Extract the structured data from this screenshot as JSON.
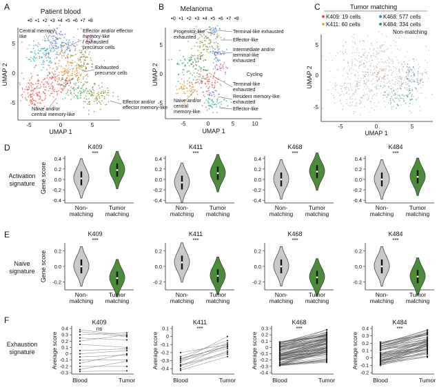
{
  "colors": {
    "violin_gray": "#c9c9cb",
    "violin_green": "#4a8c3a",
    "cluster": [
      "#e8524f",
      "#f28e2b",
      "#7f8c1f",
      "#2ca25f",
      "#26a6a6",
      "#4f7fc2",
      "#8a6bc0",
      "#d65fb0",
      "#8c5a3c"
    ],
    "umap_c_nonmatch": "#b5b5b5",
    "umap_c_match": [
      "#e8524f",
      "#f2a33a",
      "#4f7fc2",
      "#2ca25f"
    ]
  },
  "panelA": {
    "letter": "A",
    "title": "Patient blood",
    "cluster_labels": [
      "0",
      "1",
      "2",
      "3",
      "4",
      "5",
      "6",
      "7",
      "8"
    ],
    "xlabel": "UMAP 1",
    "ylabel": "UMAP 2",
    "xticks": [
      "-5",
      "0",
      "5"
    ],
    "yticks": [
      "5",
      "0",
      "-5"
    ],
    "annotations": [
      {
        "line1": "Central memory-",
        "line2": "like",
        "line3": ""
      },
      {
        "line1": "Effector and/or effector",
        "line2": "memory-like",
        "line3": "/ exhausted"
      },
      {
        "line1": "precursor cells",
        "line2": "",
        "line3": ""
      },
      {
        "line1": "Exhausted",
        "line2": "precursor cells",
        "line3": ""
      },
      {
        "line1": "Effector and/or",
        "line2": "effector memory-like",
        "line3": ""
      },
      {
        "line1": "Naive and/or",
        "line2": "central memory-like",
        "line3": ""
      }
    ]
  },
  "panelB": {
    "letter": "B",
    "title": "Melanoma",
    "cluster_labels": [
      "0",
      "1",
      "2",
      "3",
      "4",
      "5",
      "6",
      "7",
      "8"
    ],
    "xlabel": "UMAP 1",
    "ylabel": "UMAP 2",
    "xticks": [
      "-5",
      "0",
      "5",
      "10"
    ],
    "yticks": [
      "5",
      "0",
      "-5"
    ],
    "annotations": [
      {
        "line1": "Progenitor-like",
        "line2": "exhausted"
      },
      {
        "line1": "Terminal-like exhausted",
        "line2": ""
      },
      {
        "line1": "Effector-like",
        "line2": ""
      },
      {
        "line1": "Intermediate and/or",
        "line2": "terminal-like"
      },
      {
        "line1": "exhausted",
        "line2": ""
      },
      {
        "line1": "Cycling",
        "line2": ""
      },
      {
        "line1": "Terminal-like",
        "line2": "exhausted"
      },
      {
        "line1": "Resident memory-like",
        "line2": "exhausted"
      },
      {
        "line1": "Effector-like",
        "line2": ""
      },
      {
        "line1": "Naive and/or",
        "line2": "central"
      },
      {
        "line1": "memory-like",
        "line2": ""
      }
    ]
  },
  "panelC": {
    "letter": "C",
    "title": "Tumor matching",
    "legend": [
      "K409: 19 cells",
      "K468: 577 cells",
      "K411: 60 cells",
      "K484: 334 cells",
      "Non-matching"
    ],
    "xlabel": "UMAP 1",
    "ylabel": "UMAP 2",
    "xticks": [
      "-5",
      "0",
      "5"
    ],
    "yticks": [
      "5",
      "0",
      "-5"
    ]
  },
  "panelD": {
    "letter": "D",
    "row_label_1": "Activation",
    "row_label_2": "signature",
    "ylabel": "Gene score",
    "yticks": [
      "0.4",
      "0.2",
      "0.0",
      "-0.2",
      "-0.4"
    ],
    "cat1_line1": "Non-",
    "cat1_line2": "matching",
    "cat2_line1": "Tumor",
    "cat2_line2": "matching",
    "plots": [
      {
        "title": "K409",
        "sig": "***"
      },
      {
        "title": "K411",
        "sig": "***"
      },
      {
        "title": "K468",
        "sig": "***"
      },
      {
        "title": "K484",
        "sig": "***"
      }
    ]
  },
  "panelE": {
    "letter": "E",
    "row_label_1": "Naive",
    "row_label_2": "signature",
    "ylabel": "Gene score",
    "yticks": [
      "0.2",
      "0.0",
      "-0.2"
    ],
    "plots": [
      {
        "title": "K409",
        "sig": "***"
      },
      {
        "title": "K411",
        "sig": "***"
      },
      {
        "title": "K468",
        "sig": "***"
      },
      {
        "title": "K484",
        "sig": "***"
      }
    ]
  },
  "panelF": {
    "letter": "F",
    "row_label_1": "Exhaustion",
    "row_label_2": "signature",
    "ylabel": "Average score",
    "xcat1": "Blood",
    "xcat2": "Tumor",
    "plots": [
      {
        "title": "K409",
        "sig": "ns",
        "yticks": [
          "0.4",
          "0.3",
          "0.2",
          "0.1",
          "0",
          "-0.1",
          "-0.2",
          "-0.3"
        ]
      },
      {
        "title": "K411",
        "sig": "***",
        "yticks": [
          "0.1",
          "0",
          "-0.1",
          "-0.2",
          "-0.3",
          "-0.4"
        ]
      },
      {
        "title": "K468",
        "sig": "***",
        "yticks": [
          "0.3",
          "0.2",
          "0.1",
          "0",
          "-0.1",
          "-0.2",
          "-0.3",
          "-0.4"
        ]
      },
      {
        "title": "K484",
        "sig": "***",
        "yticks": [
          "0.4",
          "0.3",
          "0.2",
          "0.1",
          "0",
          "-0.1",
          "-0.2"
        ]
      }
    ]
  },
  "chart_data": [
    {
      "type": "violin",
      "panel": "D",
      "title": "Activation signature",
      "ylabel": "Gene score",
      "ylim": [
        -0.4,
        0.4
      ],
      "categories": [
        "Non-matching",
        "Tumor matching"
      ],
      "series": [
        {
          "name": "K409",
          "medians": [
            0.02,
            0.18
          ],
          "significance": "***"
        },
        {
          "name": "K411",
          "medians": [
            -0.06,
            0.12
          ],
          "significance": "***"
        },
        {
          "name": "K468",
          "medians": [
            0.0,
            0.15
          ],
          "significance": "***"
        },
        {
          "name": "K484",
          "medians": [
            0.0,
            0.05
          ],
          "significance": "***"
        }
      ]
    },
    {
      "type": "violin",
      "panel": "E",
      "title": "Naive signature",
      "ylabel": "Gene score",
      "categories": [
        "Non-matching",
        "Tumor matching"
      ],
      "series": [
        {
          "name": "K409",
          "medians": [
            0.0,
            -0.15
          ],
          "significance": "***"
        },
        {
          "name": "K411",
          "medians": [
            0.05,
            -0.12
          ],
          "significance": "***"
        },
        {
          "name": "K468",
          "medians": [
            0.0,
            -0.14
          ],
          "significance": "***"
        },
        {
          "name": "K484",
          "medians": [
            0.0,
            -0.13
          ],
          "significance": "***"
        }
      ]
    },
    {
      "type": "line",
      "panel": "F",
      "title": "Exhaustion signature",
      "ylabel": "Average score",
      "x": [
        "Blood",
        "Tumor"
      ],
      "series": [
        {
          "name": "K409",
          "ylim": [
            -0.3,
            0.4
          ],
          "significance": "ns",
          "pairs": [
            [
              0.38,
              0.29
            ],
            [
              0.35,
              0.27
            ],
            [
              0.3,
              0.33
            ],
            [
              0.25,
              0.22
            ],
            [
              0.2,
              0.3
            ],
            [
              0.15,
              0.1
            ],
            [
              0.05,
              0.08
            ],
            [
              0.0,
              0.05
            ],
            [
              -0.05,
              -0.02
            ],
            [
              -0.1,
              -0.1
            ],
            [
              -0.15,
              0.0
            ],
            [
              -0.2,
              -0.2
            ],
            [
              -0.25,
              -0.12
            ],
            [
              -0.28,
              -0.27
            ]
          ]
        },
        {
          "name": "K411",
          "ylim": [
            -0.45,
            0.1
          ],
          "significance": "***",
          "pairs": [
            [
              -0.2,
              -0.1
            ],
            [
              -0.25,
              -0.05
            ],
            [
              -0.28,
              -0.12
            ],
            [
              -0.3,
              -0.15
            ],
            [
              -0.32,
              -0.08
            ],
            [
              -0.35,
              -0.2
            ],
            [
              -0.37,
              -0.1
            ],
            [
              -0.4,
              -0.18
            ],
            [
              -0.42,
              -0.25
            ],
            [
              -0.3,
              0.0
            ],
            [
              -0.27,
              -0.13
            ],
            [
              -0.36,
              -0.22
            ]
          ]
        },
        {
          "name": "K468",
          "ylim": [
            -0.4,
            0.3
          ],
          "significance": "***"
        },
        {
          "name": "K484",
          "ylim": [
            -0.2,
            0.4
          ],
          "significance": "***"
        }
      ]
    }
  ]
}
